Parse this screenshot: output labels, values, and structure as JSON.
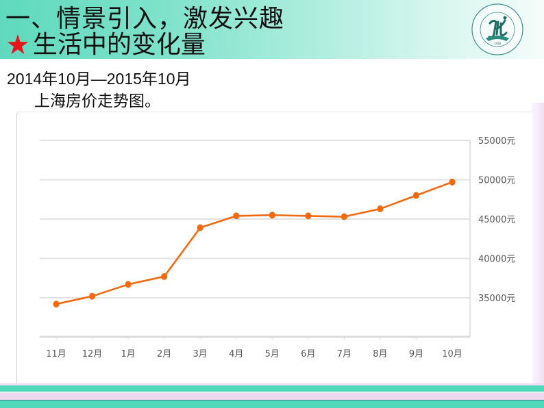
{
  "header": {
    "title": "一、情景引入，激发兴趣",
    "subtitle_icon": "star-icon",
    "subtitle_star": "★",
    "subtitle": "生活中的变化量",
    "logo_text_top": "怀 川 文 学",
    "logo_year": "1928",
    "logo_text_bottom": "XIECHUAN NO.8 HIGHSCHOOL"
  },
  "intro": {
    "date_range": "2014年10月—2015年10月",
    "caption": "上海房价走势图。"
  },
  "colors": {
    "header_start": "#5fd9bd",
    "header_end": "#f4fcfa",
    "line": "#f26a10",
    "gridline": "#e2e2e2",
    "axis_text": "#555555",
    "footer_teal": "#52d9bc",
    "footer_pink": "#f1d8f1",
    "star": "#e8141c"
  },
  "chart_data": {
    "type": "line",
    "title": "上海房价走势图",
    "xlabel": "",
    "ylabel": "",
    "categories": [
      "11月",
      "12月",
      "1月",
      "2月",
      "3月",
      "4月",
      "5月",
      "6月",
      "7月",
      "8月",
      "9月",
      "10月"
    ],
    "series": [
      {
        "name": "上海房价",
        "values": [
          34200,
          35200,
          36700,
          37700,
          43900,
          45400,
          45500,
          45400,
          45300,
          46300,
          48000,
          49700
        ]
      }
    ],
    "yticks": [
      35000,
      40000,
      45000,
      50000,
      55000
    ],
    "ytick_labels": [
      "35000元",
      "40000元",
      "45000元",
      "50000元",
      "55000元"
    ],
    "ylim": [
      32000,
      55000
    ],
    "y_axis_position": "right",
    "grid": true,
    "legend": false
  }
}
